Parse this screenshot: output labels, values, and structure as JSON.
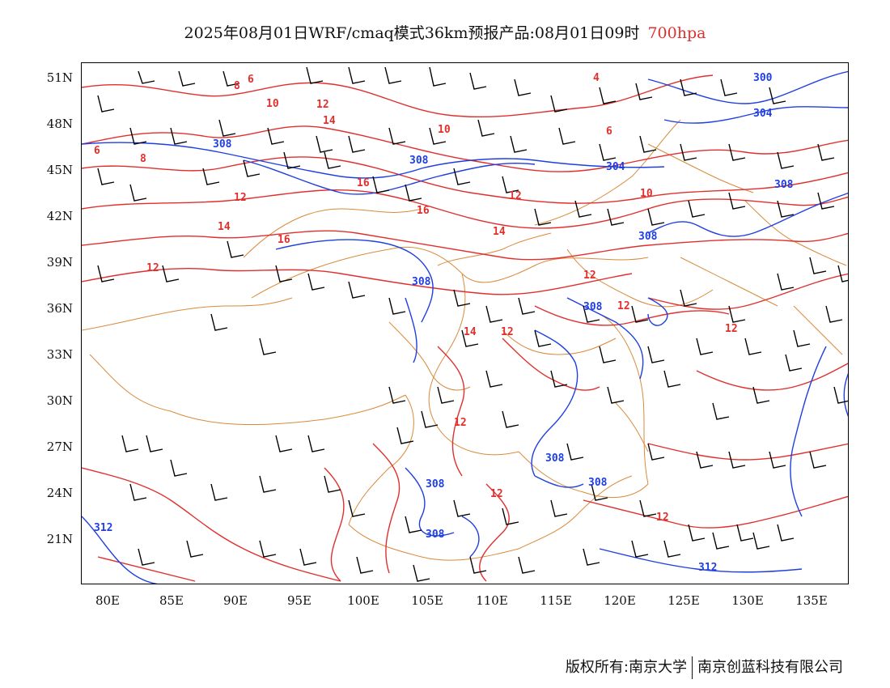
{
  "title": {
    "main": "2025年08月01日WRF/cmaq模式36km预报产品:08月01日09时",
    "level": "700hpa"
  },
  "axes": {
    "lat_labels": [
      "51N",
      "48N",
      "45N",
      "42N",
      "39N",
      "36N",
      "33N",
      "30N",
      "27N",
      "24N",
      "21N"
    ],
    "lon_labels": [
      "80E",
      "85E",
      "90E",
      "95E",
      "100E",
      "105E",
      "110E",
      "115E",
      "120E",
      "125E",
      "130E",
      "135E"
    ]
  },
  "contours": {
    "height_color": "#1f3fe0",
    "temperature_color": "#e0302e",
    "border_color": "#d98a3a",
    "wind_color": "#000000",
    "height_labels": [
      "300",
      "304",
      "308",
      "308",
      "304",
      "308",
      "308",
      "308",
      "308",
      "308",
      "308",
      "308",
      "308",
      "312",
      "312"
    ],
    "temperature_labels": [
      "4",
      "6",
      "8",
      "10",
      "12",
      "14",
      "16",
      "6",
      "8",
      "10",
      "12",
      "14",
      "16",
      "16",
      "14",
      "12",
      "10",
      "6",
      "12",
      "12",
      "12",
      "14",
      "12",
      "12",
      "12",
      "12",
      "12"
    ]
  },
  "footer": {
    "copyright": "版权所有:南京大学",
    "company": "南京创蓝科技有限公司"
  }
}
